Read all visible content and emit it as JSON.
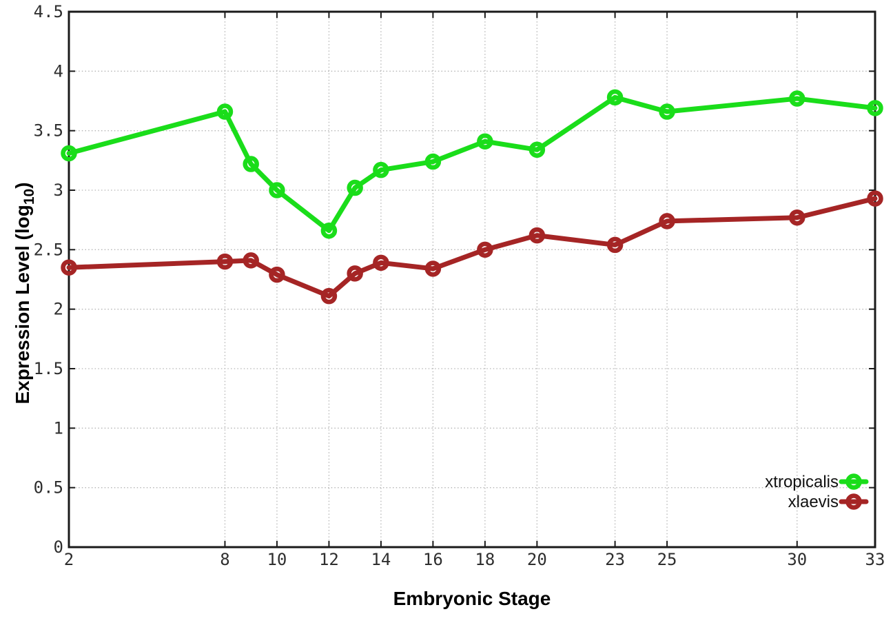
{
  "chart_data": {
    "type": "line",
    "title": "",
    "xlabel": "Embryonic Stage",
    "ylabel": {
      "main": "Expression Level (log",
      "sub": "10",
      "end": ")"
    },
    "xlim": [
      2,
      33
    ],
    "ylim": [
      0,
      4.5
    ],
    "grid": true,
    "legend_position": "inside-bottom-right",
    "x": [
      2,
      8,
      9,
      10,
      12,
      13,
      14,
      16,
      18,
      20,
      23,
      25,
      30,
      33
    ],
    "x_tick_values": [
      2,
      8,
      10,
      12,
      14,
      16,
      18,
      20,
      23,
      25,
      30,
      33
    ],
    "x_tick_labels": [
      "2",
      "8",
      "10",
      "12",
      "14",
      "16",
      "18",
      "20",
      "23",
      "25",
      "30",
      "33"
    ],
    "y_tick_values": [
      0,
      0.5,
      1,
      1.5,
      2,
      2.5,
      3,
      3.5,
      4,
      4.5
    ],
    "y_tick_labels": [
      "0",
      "0.5",
      "1",
      "1.5",
      "2",
      "2.5",
      "3",
      "3.5",
      "4",
      "4.5"
    ],
    "series": [
      {
        "name": "xtropicalis",
        "color": "#1add1a",
        "values": [
          3.31,
          3.66,
          3.22,
          3.0,
          2.66,
          3.02,
          3.17,
          3.24,
          3.41,
          3.34,
          3.78,
          3.66,
          3.77,
          3.69
        ]
      },
      {
        "name": "xlaevis",
        "color": "#a52525",
        "values": [
          2.35,
          2.4,
          2.41,
          2.29,
          2.11,
          2.3,
          2.39,
          2.34,
          2.5,
          2.62,
          2.54,
          2.74,
          2.77,
          2.93
        ]
      }
    ],
    "colors": {
      "background": "#ffffff",
      "grid": "#b4b4b4",
      "axis": "#1a1a1a",
      "tick_text": "#2e2e2e",
      "label_text": "#000000"
    }
  }
}
